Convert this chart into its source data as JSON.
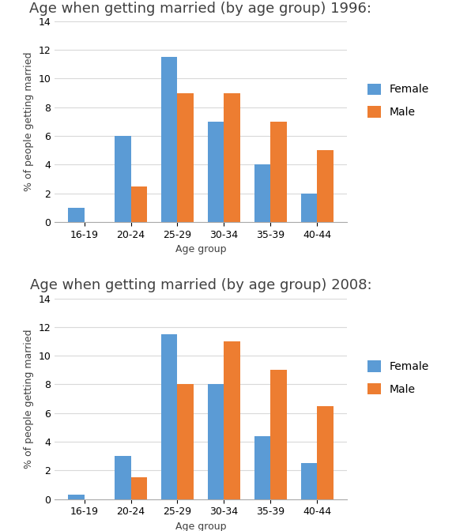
{
  "categories": [
    "16-19",
    "20-24",
    "25-29",
    "30-34",
    "35-39",
    "40-44"
  ],
  "chart1": {
    "title": "Age when getting married (by age group) 1996:",
    "female": [
      1.0,
      6.0,
      11.5,
      7.0,
      4.0,
      2.0
    ],
    "male": [
      0.0,
      2.5,
      9.0,
      9.0,
      7.0,
      5.0
    ]
  },
  "chart2": {
    "title": "Age when getting married (by age group) 2008:",
    "female": [
      0.3,
      3.0,
      11.5,
      8.0,
      4.4,
      2.5
    ],
    "male": [
      0.0,
      1.5,
      8.0,
      11.0,
      9.0,
      6.5
    ]
  },
  "female_color": "#5B9BD5",
  "male_color": "#ED7D31",
  "xlabel": "Age group",
  "ylabel": "% of people getting married",
  "ylim": [
    0,
    14
  ],
  "yticks": [
    0,
    2,
    4,
    6,
    8,
    10,
    12,
    14
  ],
  "bar_width": 0.35,
  "title_fontsize": 13,
  "label_fontsize": 9,
  "tick_fontsize": 9,
  "legend_labels": [
    "Female",
    "Male"
  ],
  "bg_color": "#FFFFFF",
  "grid_color": "#D9D9D9"
}
